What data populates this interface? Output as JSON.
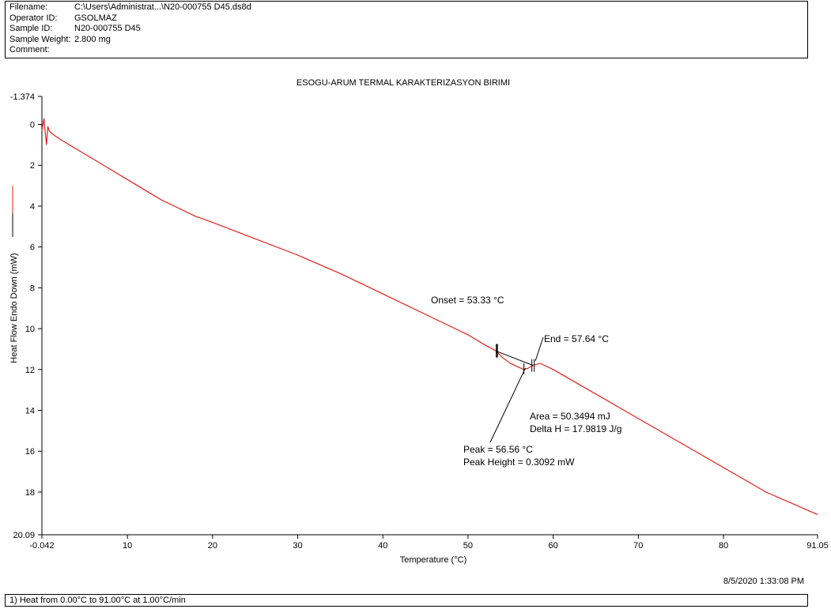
{
  "header": {
    "rows": [
      {
        "key": "Filename:",
        "value": "C:\\Users\\Administrat...\\N20-000755 D45.ds8d"
      },
      {
        "key": "Operator ID:",
        "value": "GSOLMAZ"
      },
      {
        "key": "Sample ID:",
        "value": "N20-000755 D45"
      },
      {
        "key": "Sample Weight:",
        "value": "2.800 mg"
      },
      {
        "key": "Comment:",
        "value": ""
      }
    ]
  },
  "footer": {
    "timestamp": "8/5/2020 1:33:08 PM",
    "method": "1)  Heat from 0.00°C to 91.00°C at 1.00°C/min"
  },
  "colors": {
    "curve": "#e0201a",
    "annotation": "#000000"
  },
  "chart_data": {
    "type": "line",
    "title": "ESOGU-ARUM TERMAL KARAKTERIZASYON BIRIMI",
    "xlabel": "Temperature (°C)",
    "ylabel": "Heat Flow Endo Down (mW)",
    "xlim": [
      -0.042,
      91.05
    ],
    "ylim": [
      -1.374,
      20.09
    ],
    "y_inverted": true,
    "grid": false,
    "x_ticks": [
      -0.042,
      10,
      20,
      30,
      40,
      50,
      60,
      70,
      80,
      91.05
    ],
    "x_tick_labels": [
      "-0.042",
      "10",
      "20",
      "30",
      "40",
      "50",
      "60",
      "70",
      "80",
      "91.05"
    ],
    "y_ticks": [
      -1.374,
      0,
      2,
      4,
      6,
      8,
      10,
      12,
      14,
      16,
      18,
      20.09
    ],
    "y_tick_labels": [
      "-1.374",
      "0",
      "2",
      "4",
      "6",
      "8",
      "10",
      "12",
      "14",
      "16",
      "18",
      "20.09"
    ],
    "series": [
      {
        "x": [
          -0.042,
          0.2,
          0.35,
          0.5,
          0.65,
          0.8,
          1.0,
          1.3,
          2,
          4,
          6,
          8,
          10,
          12,
          14,
          16,
          18,
          20,
          25,
          30,
          35,
          40,
          45,
          48,
          50,
          52,
          53.33,
          54,
          55,
          56,
          56.56,
          57,
          57.64,
          58.5,
          60,
          65,
          70,
          75,
          80,
          85,
          91.05
        ],
        "y": [
          0.3,
          -0.3,
          0.4,
          1.0,
          0.1,
          0.3,
          0.4,
          0.5,
          0.7,
          1.2,
          1.7,
          2.2,
          2.7,
          3.2,
          3.7,
          4.1,
          4.5,
          4.8,
          5.6,
          6.4,
          7.3,
          8.3,
          9.3,
          9.9,
          10.3,
          10.8,
          11.1,
          11.4,
          11.7,
          11.9,
          12.0,
          11.95,
          11.8,
          11.7,
          12.0,
          13.2,
          14.4,
          15.6,
          16.8,
          18.0,
          19.1
        ]
      }
    ],
    "annotations": {
      "onset": "Onset = 53.33 °C",
      "end": "End = 57.64 °C",
      "area": "Area = 50.3494 mJ",
      "delta_h": "Delta H = 17.9819 J/g",
      "peak": "Peak = 56.56 °C",
      "peak_height": "Peak Height = 0.3092 mW"
    }
  }
}
